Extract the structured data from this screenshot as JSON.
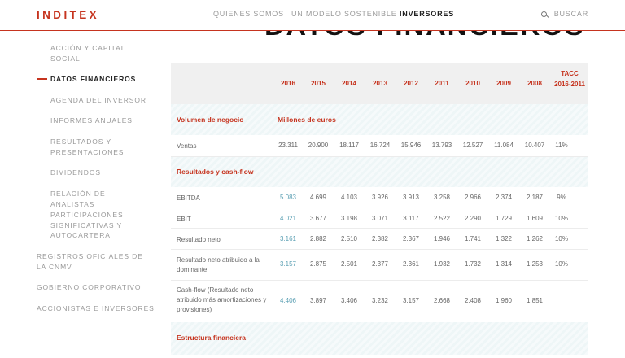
{
  "header": {
    "logo": "INDITEX",
    "nav": [
      "QUIENES SOMOS",
      "UN MODELO SOSTENIBLE",
      "INVERSORES"
    ],
    "search_label": "BUSCAR",
    "page_title": "DATOS FINANCIEROS"
  },
  "sidebar": {
    "items": [
      "ACCIÓN Y CAPITAL SOCIAL",
      "DATOS FINANCIEROS",
      "AGENDA DEL INVERSOR",
      "INFORMES ANUALES",
      "RESULTADOS Y PRESENTACIONES",
      "DIVIDENDOS",
      "RELACIÓN DE ANALISTAS",
      "PARTICIPACIONES SIGNIFICATIVAS Y AUTOCARTERA",
      "REGISTROS OFICIALES DE LA CNMV",
      "GOBIERNO CORPORATIVO",
      "ACCIONISTAS E INVERSORES"
    ]
  },
  "table": {
    "columns": [
      "2016",
      "2015",
      "2014",
      "2013",
      "2012",
      "2011",
      "2010",
      "2009",
      "2008",
      "TACC 2016-2011"
    ],
    "sections": [
      {
        "label": "Volumen de negocio",
        "unit": "Millones de euros"
      },
      {
        "label": "Resultados y cash-flow",
        "unit": ""
      },
      {
        "label": "Estructura financiera",
        "unit": ""
      }
    ],
    "rows": [
      {
        "label": "Ventas",
        "values": [
          "23.311",
          "20.900",
          "18.117",
          "16.724",
          "15.946",
          "13.793",
          "12.527",
          "11.084",
          "10.407",
          "11%"
        ]
      },
      {
        "label": "EBITDA",
        "values": [
          "5.083",
          "4.699",
          "4.103",
          "3.926",
          "3.913",
          "3.258",
          "2.966",
          "2.374",
          "2.187",
          "9%"
        ]
      },
      {
        "label": "EBIT",
        "values": [
          "4.021",
          "3.677",
          "3.198",
          "3.071",
          "3.117",
          "2.522",
          "2.290",
          "1.729",
          "1.609",
          "10%"
        ]
      },
      {
        "label": "Resultado neto",
        "values": [
          "3.161",
          "2.882",
          "2.510",
          "2.382",
          "2.367",
          "1.946",
          "1.741",
          "1.322",
          "1.262",
          "10%"
        ]
      },
      {
        "label": "Resultado neto atribuido a la dominante",
        "values": [
          "3.157",
          "2.875",
          "2.501",
          "2.377",
          "2.361",
          "1.932",
          "1.732",
          "1.314",
          "1.253",
          "10%"
        ]
      },
      {
        "label": "Cash-flow (Resultado neto atribuido más amortizaciones y provisiones)",
        "values": [
          "4.406",
          "3.897",
          "3.406",
          "3.232",
          "3.157",
          "2.668",
          "2.408",
          "1.960",
          "1.851",
          ""
        ]
      }
    ]
  }
}
